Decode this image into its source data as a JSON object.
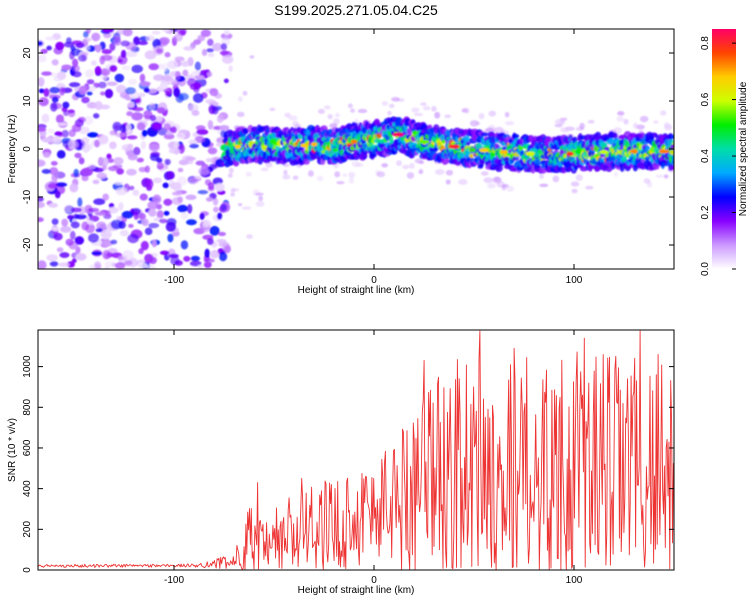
{
  "title": "S199.2025.271.05.04.C25",
  "colors": {
    "snr_line": "#ee3333",
    "frame": "#000000",
    "background": "#ffffff"
  },
  "chart_data": [
    {
      "type": "heatmap",
      "name": "spectrogram",
      "xlabel": "Height of straight line (km)",
      "ylabel": "Frequency (Hz)",
      "xlim": [
        -168,
        150
      ],
      "ylim": [
        -25,
        25
      ],
      "x_ticks": [
        -100,
        0,
        100
      ],
      "x_tick_labels": [
        "-100",
        "0",
        "100"
      ],
      "y_ticks": [
        20,
        10,
        0,
        -10,
        -20
      ],
      "y_tick_labels": [
        "20",
        "10",
        "0",
        "-10",
        "-20"
      ],
      "noise_region_x": [
        -168,
        -75
      ],
      "signal_start_x": -75,
      "ridge": {
        "x": [
          -75,
          -60,
          -40,
          -30,
          -20,
          -10,
          0,
          12,
          25,
          40,
          60,
          80,
          100,
          120,
          150
        ],
        "freq": [
          0.0,
          1.0,
          0.5,
          1.0,
          0.5,
          1.5,
          2.0,
          3.0,
          1.5,
          0.5,
          -0.5,
          -1.0,
          -1.0,
          -0.5,
          -0.5
        ],
        "peak_amplitude": 0.85
      },
      "colorbar": {
        "label": "Normalized spectral amplitude",
        "range": [
          0,
          0.85
        ],
        "ticks": [
          0.0,
          0.2,
          0.4,
          0.6,
          0.8
        ],
        "tick_labels": [
          "0.0",
          "0.2",
          "0.4",
          "0.6",
          "0.8"
        ],
        "colormap": [
          "#ffffff",
          "#cc99ff",
          "#8800ff",
          "#0000ff",
          "#00aaff",
          "#00ddaa",
          "#00ee00",
          "#ccff00",
          "#ffcc00",
          "#ff4400",
          "#ff0066"
        ]
      }
    },
    {
      "type": "line",
      "name": "snr",
      "xlabel": "Height of straight line (km)",
      "ylabel": "SNR (10 * v/v)",
      "xlim": [
        -168,
        150
      ],
      "ylim": [
        0,
        1180
      ],
      "x_ticks": [
        -100,
        0,
        100
      ],
      "x_tick_labels": [
        "-100",
        "0",
        "100"
      ],
      "y_ticks": [
        0,
        200,
        400,
        600,
        800,
        1000
      ],
      "y_tick_labels": [
        "0",
        "200",
        "400",
        "600",
        "800",
        "1000"
      ],
      "series": [
        {
          "name": "SNR",
          "envelope": {
            "x": [
              -168,
              -90,
              -70,
              -62,
              -55,
              -45,
              -35,
              -20,
              -5,
              5,
              15,
              20,
              30,
              50,
              80,
              110,
              130,
              150
            ],
            "mean": [
              20,
              22,
              40,
              140,
              100,
              160,
              180,
              220,
              280,
              320,
              370,
              420,
              470,
              520,
              500,
              520,
              500,
              520
            ],
            "amplitude": [
              8,
              8,
              40,
              200,
              120,
              220,
              220,
              240,
              260,
              300,
              380,
              480,
              520,
              560,
              560,
              560,
              580,
              580
            ]
          },
          "peaks": [
            {
              "x": -58,
              "y": 430
            },
            {
              "x": -36,
              "y": 450
            },
            {
              "x": 25,
              "y": 1030
            },
            {
              "x": 53,
              "y": 1175
            },
            {
              "x": 70,
              "y": 1090
            },
            {
              "x": 105,
              "y": 1140
            },
            {
              "x": 133,
              "y": 1175
            },
            {
              "x": 142,
              "y": 1060
            }
          ]
        }
      ]
    }
  ]
}
